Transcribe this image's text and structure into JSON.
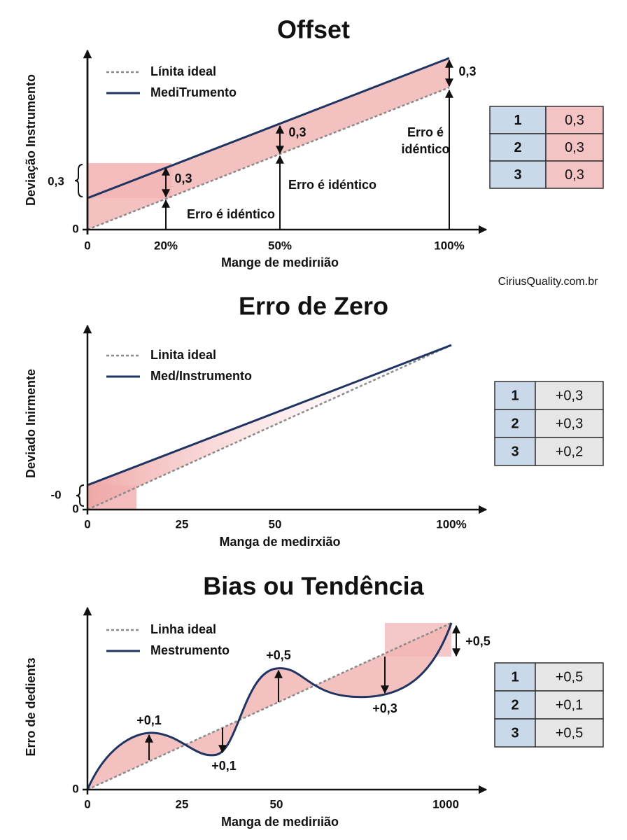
{
  "credit": "CiriusQuality.com.br",
  "panels": [
    {
      "title": "Offset",
      "legend": [
        "Línita ideal",
        "MediTrumento"
      ],
      "y_label": "Deviação Instrumento",
      "x_label": "Mange de medirıião",
      "y_ticks": [
        "0,3",
        "0"
      ],
      "x_ticks": [
        "0",
        "20%",
        "50%",
        "100%"
      ],
      "annotations": [
        "0,3",
        "0,3",
        "0,3",
        "Erro é idéntico",
        "Erro é idéntico",
        "Erro é",
        "idéntico"
      ],
      "table": [
        [
          "1",
          "0,3"
        ],
        [
          "2",
          "0,3"
        ],
        [
          "3",
          "0,3"
        ]
      ]
    },
    {
      "title": "Erro de Zero",
      "legend": [
        "Linita ideal",
        "Med/Instrumento"
      ],
      "y_label": "Deviado Inirmente",
      "x_label": "Manga de medirxião",
      "y_ticks": [
        "-0",
        "0"
      ],
      "x_ticks": [
        "0",
        "25",
        "50",
        "100%"
      ],
      "annotations": [],
      "table": [
        [
          "1",
          "+0,3"
        ],
        [
          "2",
          "+0,3"
        ],
        [
          "3",
          "+0,2"
        ]
      ]
    },
    {
      "title": "Bias ou Tendência",
      "legend": [
        "Linha ideal",
        "Mestrumento"
      ],
      "y_label": "Erro de dedientɜ",
      "x_label": "Manga de medirıião",
      "y_ticks": [
        "0"
      ],
      "x_ticks": [
        "0",
        "25",
        "50",
        "1000"
      ],
      "annotations": [
        "+0,1",
        "+0,1",
        "+0,5",
        "+0,3",
        "+0,5"
      ],
      "table": [
        [
          "1",
          "+0,5"
        ],
        [
          "2",
          "+0,1"
        ],
        [
          "3",
          "+0,5"
        ]
      ]
    }
  ]
}
